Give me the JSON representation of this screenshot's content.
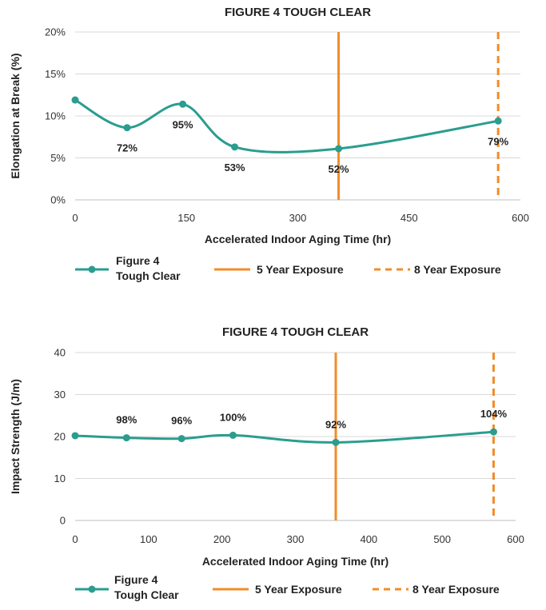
{
  "colors": {
    "series": "#2a9d8f",
    "exposure": "#f28c28",
    "grid": "#d9d9d9"
  },
  "chart_data": [
    {
      "type": "line",
      "title": "FIGURE 4 TOUGH CLEAR",
      "xlabel": "Accelerated Indoor Aging Time (hr)",
      "ylabel": "Elongation at Break (%)",
      "xlim": [
        0,
        600
      ],
      "ylim": [
        0,
        20
      ],
      "x_ticks": [
        0,
        150,
        300,
        450,
        600
      ],
      "x_tick_labels": [
        "0",
        "150",
        "300",
        "450",
        "600"
      ],
      "y_ticks": [
        0,
        5,
        10,
        15,
        20
      ],
      "y_tick_labels": [
        "0%",
        "5%",
        "10%",
        "15%",
        "20%"
      ],
      "grid": "horizontal",
      "series": [
        {
          "name_lines": [
            "Figure 4",
            "Tough Clear"
          ],
          "x": [
            0,
            70,
            145,
            215,
            355,
            570
          ],
          "y": [
            11.9,
            8.6,
            11.4,
            6.3,
            6.1,
            9.4
          ],
          "labels": [
            "",
            "72%",
            "95%",
            "53%",
            "52%",
            "79%"
          ],
          "label_pos": [
            "",
            "below",
            "below",
            "below",
            "below",
            "below"
          ]
        }
      ],
      "vlines": [
        {
          "x": 355,
          "style": "solid",
          "name": "5 Year Exposure"
        },
        {
          "x": 570,
          "style": "dashed",
          "name": "8 Year Exposure"
        }
      ],
      "legend": "bottom"
    },
    {
      "type": "line",
      "title": "FIGURE 4 TOUGH CLEAR",
      "xlabel": "Accelerated Indoor Aging Time (hr)",
      "ylabel": "Impact Strength (J/m)",
      "xlim": [
        0,
        600
      ],
      "ylim": [
        0,
        40
      ],
      "x_ticks": [
        0,
        100,
        200,
        300,
        400,
        500,
        600
      ],
      "x_tick_labels": [
        "0",
        "100",
        "200",
        "300",
        "400",
        "500",
        "600"
      ],
      "y_ticks": [
        0,
        10,
        20,
        30,
        40
      ],
      "y_tick_labels": [
        "0",
        "10",
        "20",
        "30",
        "40"
      ],
      "grid": "horizontal",
      "series": [
        {
          "name_lines": [
            "Figure 4",
            "Tough Clear"
          ],
          "x": [
            0,
            70,
            145,
            215,
            355,
            570
          ],
          "y": [
            20.2,
            19.7,
            19.5,
            20.3,
            18.6,
            21.1
          ],
          "labels": [
            "",
            "98%",
            "96%",
            "100%",
            "92%",
            "104%"
          ],
          "label_pos": [
            "",
            "above",
            "above",
            "above",
            "above",
            "above"
          ]
        }
      ],
      "vlines": [
        {
          "x": 355,
          "style": "solid",
          "name": "5 Year Exposure"
        },
        {
          "x": 570,
          "style": "dashed",
          "name": "8 Year Exposure"
        }
      ],
      "legend": "bottom"
    }
  ]
}
